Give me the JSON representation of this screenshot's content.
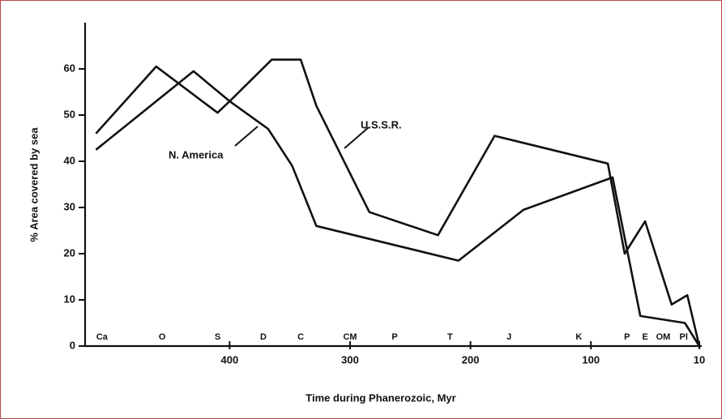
{
  "chart_data": {
    "type": "line",
    "y_label": "% Area covered by sea",
    "x_label": "Time during Phanerozoic, Myr",
    "xlim": [
      520,
      8
    ],
    "xticks": [
      400,
      300,
      200,
      100,
      10
    ],
    "ylim": [
      0,
      70
    ],
    "yticks": [
      0,
      10,
      20,
      30,
      40,
      50,
      60
    ],
    "color": "#111111",
    "series": [
      {
        "name": "U.S.S.R.",
        "color": "#111111",
        "x": [
          511,
          461,
          410,
          400,
          365,
          341,
          328,
          284,
          227,
          180,
          86,
          72,
          55,
          33,
          20,
          10
        ],
        "values": [
          46,
          60.5,
          50.5,
          53,
          62,
          62,
          52,
          29,
          24,
          45.5,
          39.5,
          20,
          27,
          9,
          11,
          0
        ]
      },
      {
        "name": "N. America",
        "color": "#111111",
        "x": [
          511,
          430,
          400,
          368,
          348,
          328,
          210,
          156,
          82,
          59,
          22,
          10
        ],
        "values": [
          42.5,
          59.5,
          53,
          47,
          39,
          26,
          18.5,
          29.5,
          36.5,
          6.5,
          5,
          0
        ]
      }
    ],
    "periods": [
      {
        "label": "Ca",
        "x": 506
      },
      {
        "label": "O",
        "x": 456
      },
      {
        "label": "S",
        "x": 410
      },
      {
        "label": "D",
        "x": 372
      },
      {
        "label": "C",
        "x": 341
      },
      {
        "label": "CM",
        "x": 300
      },
      {
        "label": "P",
        "x": 263
      },
      {
        "label": "T",
        "x": 217
      },
      {
        "label": "J",
        "x": 168
      },
      {
        "label": "K",
        "x": 110
      },
      {
        "label": "P",
        "x": 70
      },
      {
        "label": "E",
        "x": 55
      },
      {
        "label": "OM",
        "x": 40
      },
      {
        "label": "Pl",
        "x": 23
      }
    ]
  }
}
